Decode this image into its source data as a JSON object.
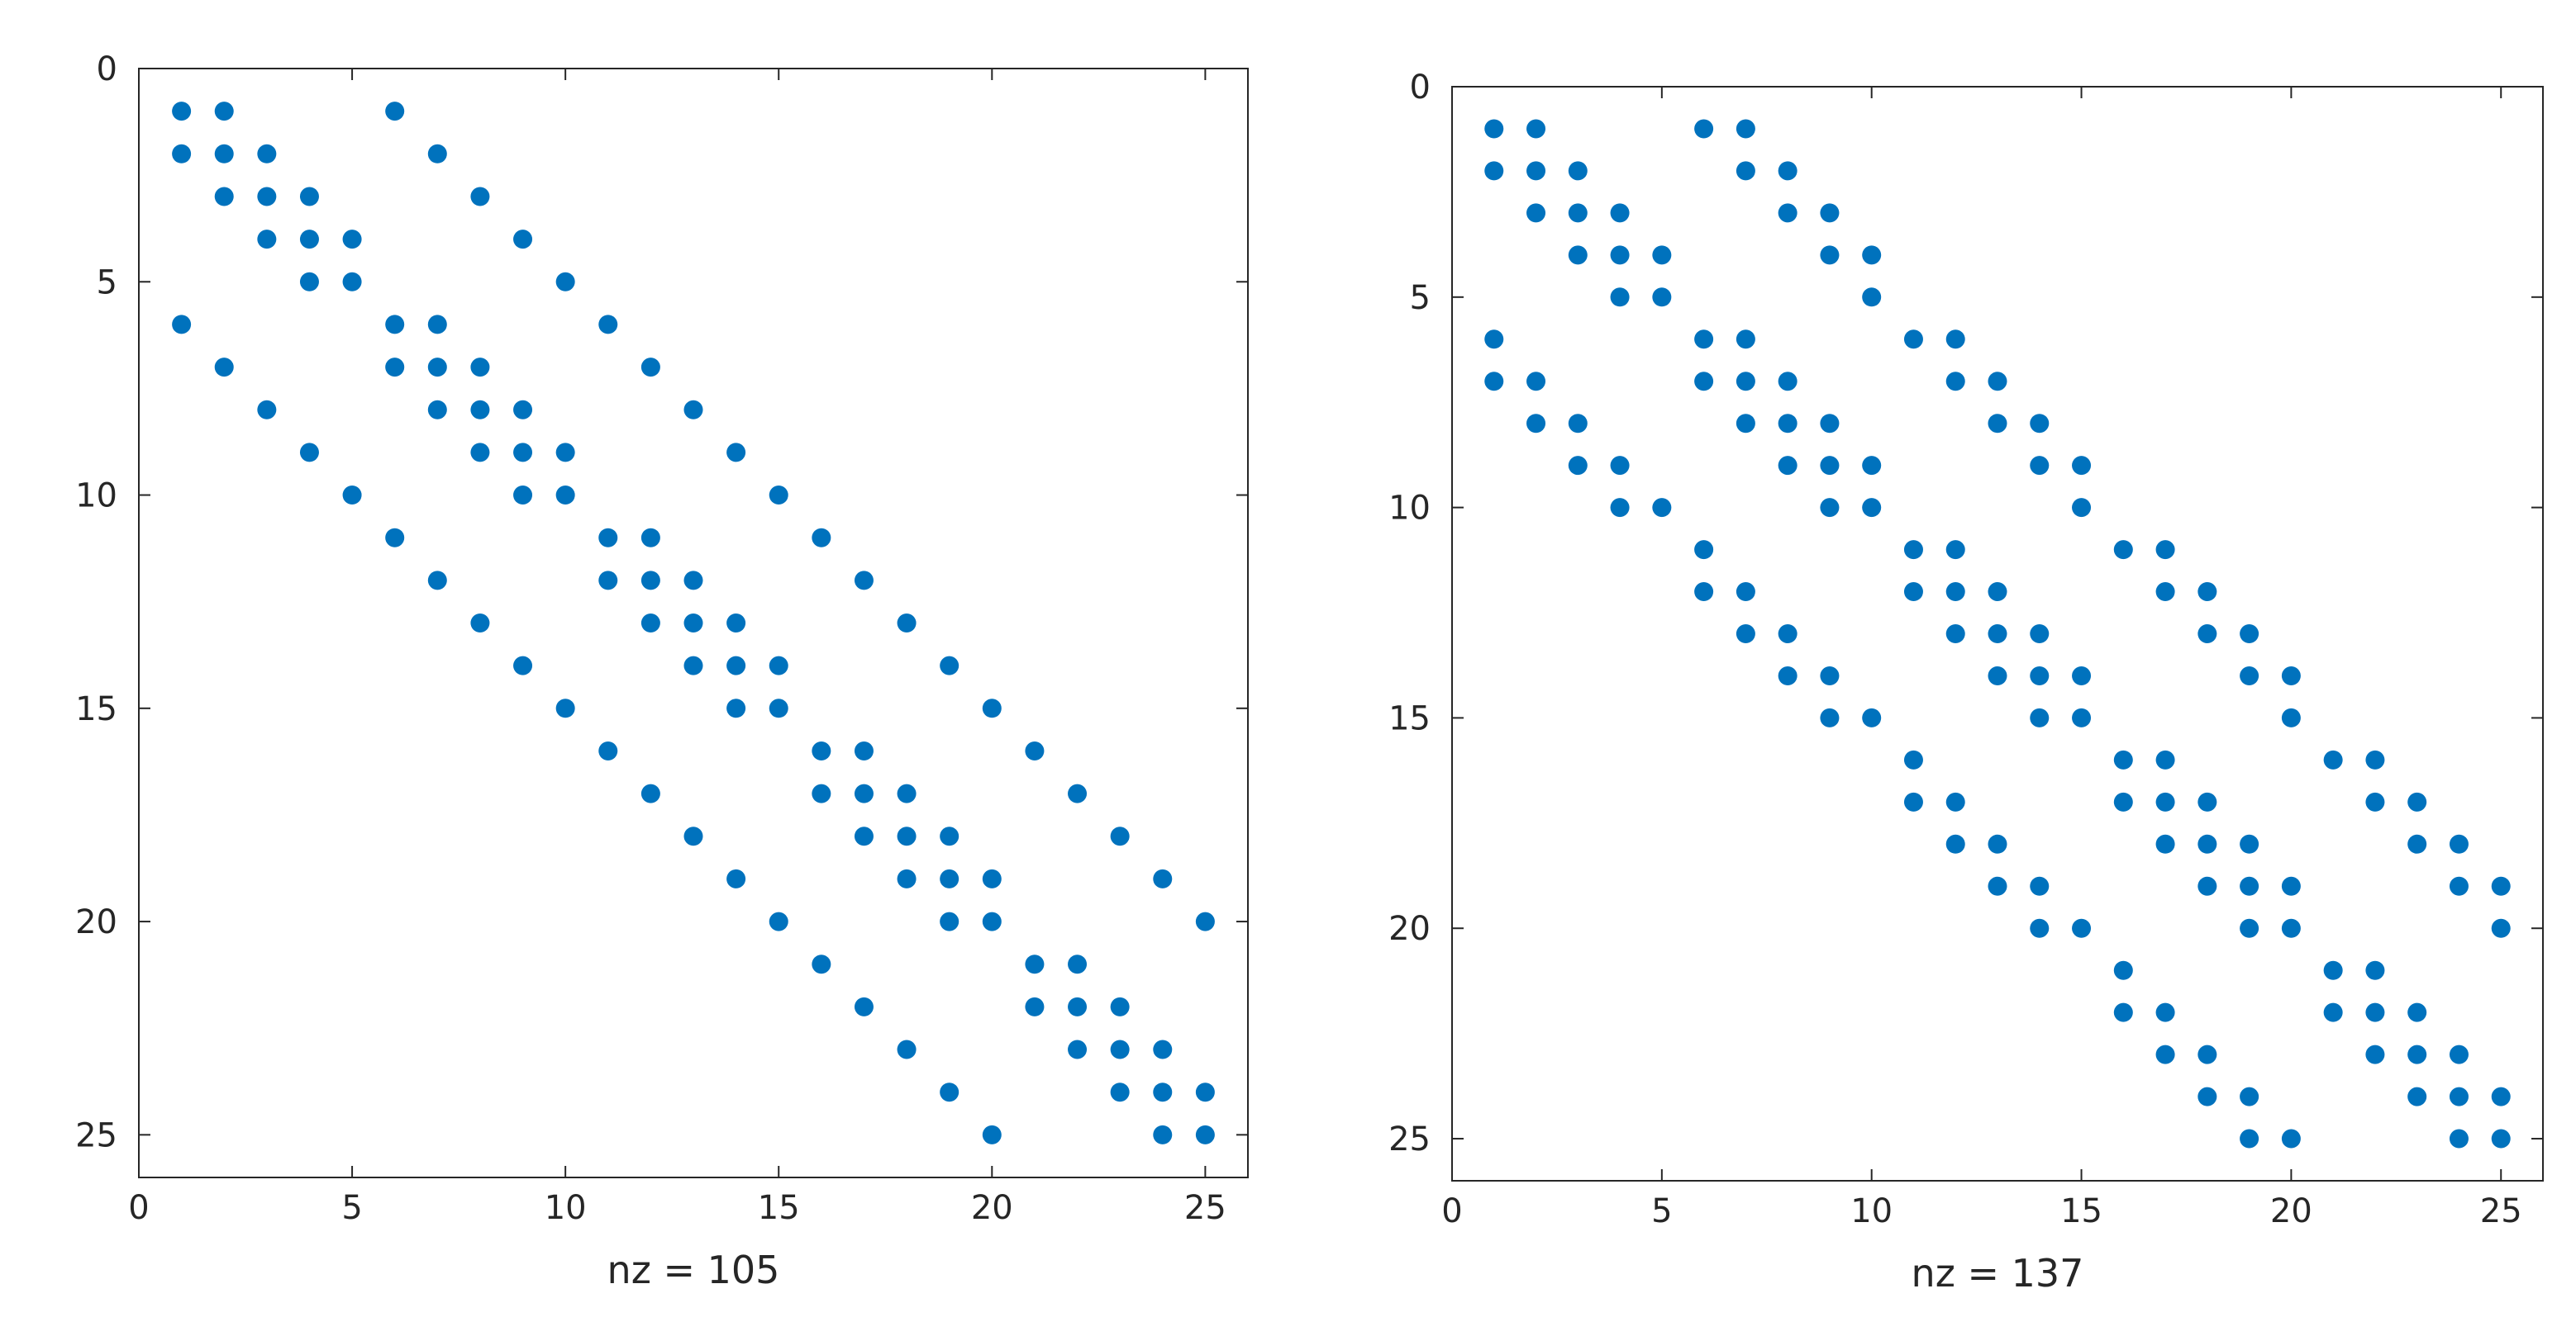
{
  "colors": {
    "marker": "#0072BD",
    "axes": "#262626",
    "background": "#ffffff"
  },
  "chart_data": [
    {
      "type": "scatter",
      "kind": "sparsity-pattern",
      "title": "",
      "xlabel": "nz = 105",
      "ylabel": "",
      "xlim": [
        0,
        26
      ],
      "ylim": [
        26,
        0
      ],
      "y_reversed": true,
      "xticks": [
        0,
        5,
        10,
        15,
        20,
        25
      ],
      "yticks": [
        0,
        5,
        10,
        15,
        20,
        25
      ],
      "xtick_labels": [
        "0",
        "5",
        "10",
        "15",
        "20",
        "25"
      ],
      "ytick_labels": [
        "0",
        "5",
        "10",
        "15",
        "20",
        "25"
      ],
      "grid": false,
      "nz": 105,
      "rows": [
        [
          1,
          2,
          6
        ],
        [
          1,
          2,
          3,
          7
        ],
        [
          2,
          3,
          4,
          8
        ],
        [
          3,
          4,
          5,
          9
        ],
        [
          4,
          5,
          10
        ],
        [
          1,
          6,
          7,
          11
        ],
        [
          2,
          6,
          7,
          8,
          12
        ],
        [
          3,
          7,
          8,
          9,
          13
        ],
        [
          4,
          8,
          9,
          10,
          14
        ],
        [
          5,
          9,
          10,
          15
        ],
        [
          6,
          11,
          12,
          16
        ],
        [
          7,
          11,
          12,
          13,
          17
        ],
        [
          8,
          12,
          13,
          14,
          18
        ],
        [
          9,
          13,
          14,
          15,
          19
        ],
        [
          10,
          14,
          15,
          20
        ],
        [
          11,
          16,
          17,
          21
        ],
        [
          12,
          16,
          17,
          18,
          22
        ],
        [
          13,
          17,
          18,
          19,
          23
        ],
        [
          14,
          18,
          19,
          20,
          24
        ],
        [
          15,
          19,
          20,
          25
        ],
        [
          16,
          21,
          22
        ],
        [
          17,
          21,
          22,
          23
        ],
        [
          18,
          22,
          23,
          24
        ],
        [
          19,
          23,
          24,
          25
        ],
        [
          20,
          24,
          25
        ]
      ]
    },
    {
      "type": "scatter",
      "kind": "sparsity-pattern",
      "title": "",
      "xlabel": "nz = 137",
      "ylabel": "",
      "xlim": [
        0,
        26
      ],
      "ylim": [
        26,
        0
      ],
      "y_reversed": true,
      "xticks": [
        0,
        5,
        10,
        15,
        20,
        25
      ],
      "yticks": [
        0,
        5,
        10,
        15,
        20,
        25
      ],
      "xtick_labels": [
        "0",
        "5",
        "10",
        "15",
        "20",
        "25"
      ],
      "ytick_labels": [
        "0",
        "5",
        "10",
        "15",
        "20",
        "25"
      ],
      "grid": false,
      "nz": 137,
      "rows": [
        [
          1,
          2,
          6,
          7
        ],
        [
          1,
          2,
          3,
          7,
          8
        ],
        [
          2,
          3,
          4,
          8,
          9
        ],
        [
          3,
          4,
          5,
          9,
          10
        ],
        [
          4,
          5,
          10
        ],
        [
          1,
          6,
          7,
          11,
          12
        ],
        [
          1,
          2,
          6,
          7,
          8,
          12,
          13
        ],
        [
          2,
          3,
          7,
          8,
          9,
          13,
          14
        ],
        [
          3,
          4,
          8,
          9,
          10,
          14,
          15
        ],
        [
          4,
          5,
          9,
          10,
          15
        ],
        [
          6,
          11,
          12,
          16,
          17
        ],
        [
          6,
          7,
          11,
          12,
          13,
          17,
          18
        ],
        [
          7,
          8,
          12,
          13,
          14,
          18,
          19
        ],
        [
          8,
          9,
          13,
          14,
          15,
          19,
          20
        ],
        [
          9,
          10,
          14,
          15,
          20
        ],
        [
          11,
          16,
          17,
          21,
          22
        ],
        [
          11,
          12,
          16,
          17,
          18,
          22,
          23
        ],
        [
          12,
          13,
          17,
          18,
          19,
          23,
          24
        ],
        [
          13,
          14,
          18,
          19,
          20,
          24,
          25
        ],
        [
          14,
          15,
          19,
          20,
          25
        ],
        [
          16,
          21,
          22
        ],
        [
          16,
          17,
          21,
          22,
          23
        ],
        [
          17,
          18,
          22,
          23,
          24
        ],
        [
          18,
          19,
          23,
          24,
          25
        ],
        [
          19,
          20,
          24,
          25
        ]
      ]
    }
  ]
}
